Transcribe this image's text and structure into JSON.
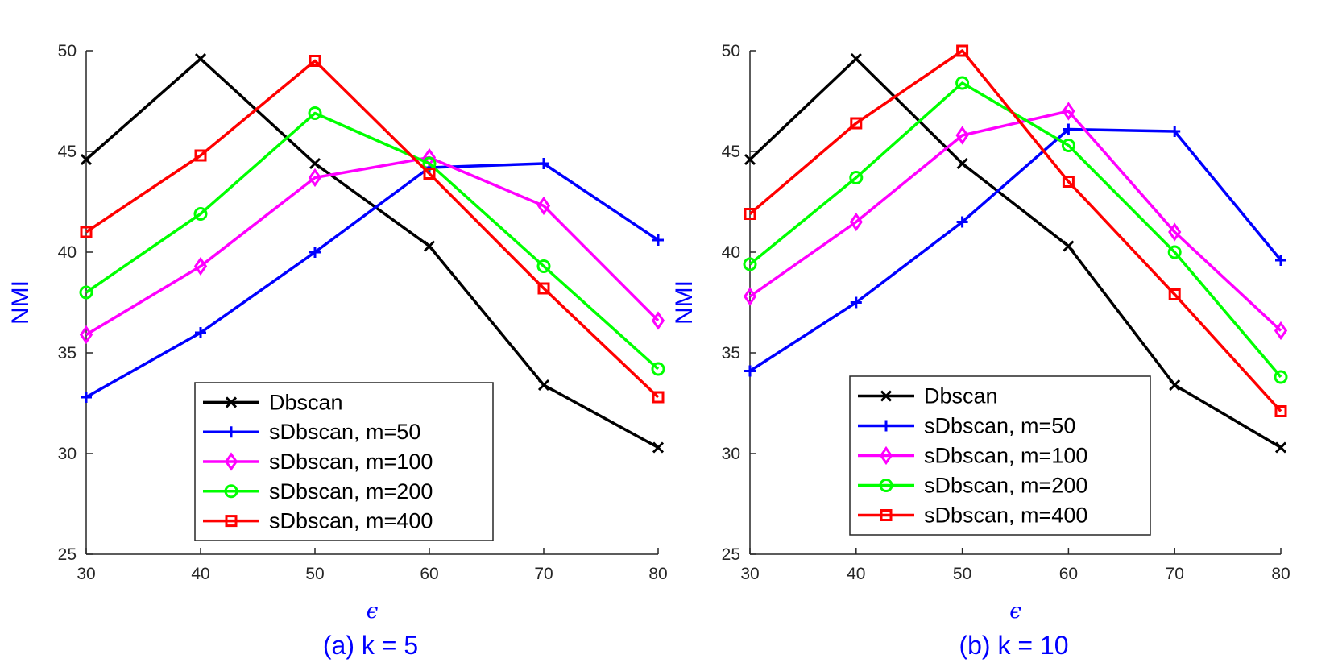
{
  "chart_data": [
    {
      "type": "line",
      "caption": "(a) k = 5",
      "xlabel": "ϵ",
      "ylabel": "NMI",
      "x": [
        30,
        40,
        50,
        60,
        70,
        80
      ],
      "xlim": [
        30,
        80
      ],
      "ylim": [
        25,
        50
      ],
      "xticks": [
        "30",
        "40",
        "50",
        "60",
        "70",
        "80"
      ],
      "yticks": [
        "25",
        "30",
        "35",
        "40",
        "45",
        "50"
      ],
      "grid": false,
      "legend_position": "bottom-center",
      "series": [
        {
          "name": "Dbscan",
          "color": "#000000",
          "marker": "x",
          "values": [
            44.6,
            49.6,
            44.4,
            40.3,
            33.4,
            30.3
          ]
        },
        {
          "name": "sDbscan, m=50",
          "color": "#0000ff",
          "marker": "plus",
          "values": [
            32.8,
            36.0,
            40.0,
            44.2,
            44.4,
            40.6
          ]
        },
        {
          "name": "sDbscan, m=100",
          "color": "#ff00ff",
          "marker": "diamond",
          "values": [
            35.9,
            39.3,
            43.7,
            44.7,
            42.3,
            36.6
          ]
        },
        {
          "name": "sDbscan, m=200",
          "color": "#00ff00",
          "marker": "circle",
          "values": [
            38.0,
            41.9,
            46.9,
            44.4,
            39.3,
            34.2
          ]
        },
        {
          "name": "sDbscan, m=400",
          "color": "#ff0000",
          "marker": "square",
          "values": [
            41.0,
            44.8,
            49.5,
            43.9,
            38.2,
            32.8
          ]
        }
      ]
    },
    {
      "type": "line",
      "caption": "(b) k = 10",
      "xlabel": "ϵ",
      "ylabel": "NMI",
      "x": [
        30,
        40,
        50,
        60,
        70,
        80
      ],
      "xlim": [
        30,
        80
      ],
      "ylim": [
        25,
        50
      ],
      "xticks": [
        "30",
        "40",
        "50",
        "60",
        "70",
        "80"
      ],
      "yticks": [
        "25",
        "30",
        "35",
        "40",
        "45",
        "50"
      ],
      "grid": false,
      "legend_position": "bottom-center",
      "series": [
        {
          "name": "Dbscan",
          "color": "#000000",
          "marker": "x",
          "values": [
            44.6,
            49.6,
            44.4,
            40.3,
            33.4,
            30.3
          ]
        },
        {
          "name": "sDbscan, m=50",
          "color": "#0000ff",
          "marker": "plus",
          "values": [
            34.1,
            37.5,
            41.5,
            46.1,
            46.0,
            39.6
          ]
        },
        {
          "name": "sDbscan, m=100",
          "color": "#ff00ff",
          "marker": "diamond",
          "values": [
            37.8,
            41.5,
            45.8,
            47.0,
            41.0,
            36.1
          ]
        },
        {
          "name": "sDbscan, m=200",
          "color": "#00ff00",
          "marker": "circle",
          "values": [
            39.4,
            43.7,
            48.4,
            45.3,
            40.0,
            33.8
          ]
        },
        {
          "name": "sDbscan, m=400",
          "color": "#ff0000",
          "marker": "square",
          "values": [
            41.9,
            46.4,
            50.0,
            43.5,
            37.9,
            32.1
          ]
        }
      ]
    }
  ]
}
